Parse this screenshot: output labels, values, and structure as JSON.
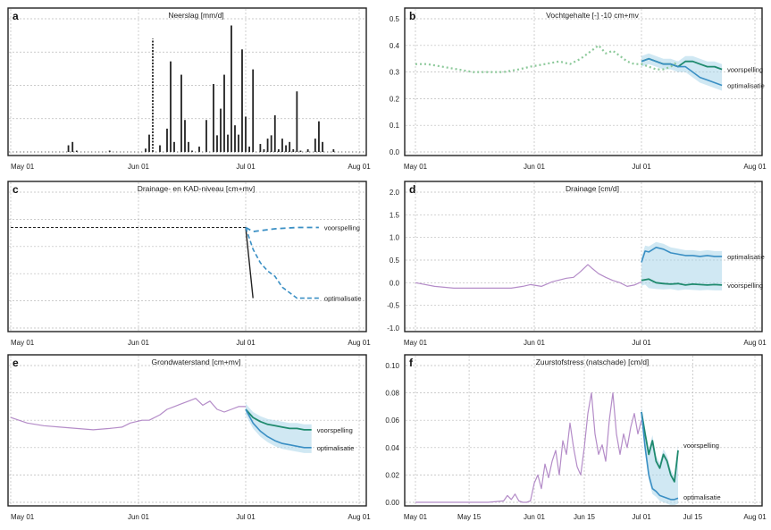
{
  "x_ticks": [
    "May 01",
    "Jun 01",
    "Jul 01",
    "Aug 01"
  ],
  "colors": {
    "observed": "#222222",
    "forecast": "#1f8a6e",
    "optimalisatie": "#3a8fc4",
    "band": "#a9d6ea",
    "history": "#b48cc8",
    "points": "#8cc99a"
  },
  "chart_data": [
    {
      "panel": "a",
      "type": "bar",
      "title": "Neerslag [mm/d]",
      "x_range": [
        1,
        93
      ],
      "ylim": [
        0,
        20
      ],
      "x": [
        15,
        16,
        17,
        25,
        34,
        35,
        36,
        38,
        40,
        41,
        42,
        44,
        45,
        46,
        47,
        49,
        51,
        53,
        54,
        55,
        56,
        57,
        58,
        59,
        60,
        61,
        62,
        63,
        64,
        66,
        67,
        68,
        69,
        70,
        71,
        72,
        73,
        74,
        75,
        76,
        77,
        79,
        81,
        82,
        83,
        86
      ],
      "values": [
        1.0,
        1.5,
        0.2,
        0.2,
        0.5,
        2.6,
        17.0,
        1.0,
        3.5,
        13.6,
        1.5,
        11.6,
        4.8,
        1.5,
        0.2,
        0.8,
        4.8,
        10.2,
        2.5,
        6.5,
        11.6,
        2.6,
        19.0,
        4.0,
        2.6,
        15.4,
        5.3,
        0.8,
        12.4,
        1.2,
        0.4,
        2.0,
        2.5,
        5.5,
        0.4,
        2.0,
        1.0,
        1.5,
        0.4,
        9.1,
        0.2,
        0.4,
        2.0,
        4.6,
        1.5,
        0.4
      ],
      "marks": [
        6
      ]
    },
    {
      "panel": "b",
      "type": "line",
      "title": "Vochtgehalte [-] -10 cm+mv",
      "x_range": [
        1,
        93
      ],
      "ylim": [
        0,
        0.5
      ],
      "yticks": [
        "0.0",
        "0.1",
        "0.2",
        "0.3",
        "0.4",
        "0.5"
      ],
      "ytick_values": [
        0,
        0.1,
        0.2,
        0.3,
        0.4,
        0.5
      ],
      "series": [
        {
          "x": [
            1,
            4,
            8,
            12,
            16,
            20,
            24,
            28,
            31,
            35,
            39,
            42,
            45,
            48,
            50,
            52,
            54,
            56,
            58,
            60,
            62,
            64,
            66,
            68,
            70,
            72
          ],
          "values": [
            0.33,
            0.33,
            0.32,
            0.31,
            0.3,
            0.3,
            0.3,
            0.31,
            0.32,
            0.33,
            0.34,
            0.33,
            0.35,
            0.38,
            0.4,
            0.37,
            0.38,
            0.36,
            0.34,
            0.33,
            0.33,
            0.32,
            0.31,
            0.31,
            0.32,
            0.34
          ]
        },
        {
          "name": "voorspelling",
          "x": [
            62,
            64,
            66,
            68,
            70,
            72,
            74,
            76,
            78,
            80,
            82,
            84
          ],
          "values": [
            0.34,
            0.35,
            0.34,
            0.33,
            0.33,
            0.32,
            0.34,
            0.34,
            0.33,
            0.32,
            0.32,
            0.31
          ]
        },
        {
          "name": "optimalisatie",
          "x": [
            62,
            64,
            66,
            68,
            70,
            72,
            74,
            76,
            78,
            80,
            82,
            84
          ],
          "values": [
            0.34,
            0.35,
            0.34,
            0.33,
            0.33,
            0.32,
            0.32,
            0.3,
            0.28,
            0.27,
            0.26,
            0.25
          ]
        }
      ],
      "labels": [
        "voorspelling",
        "optimalisatie"
      ]
    },
    {
      "panel": "c",
      "type": "line",
      "title": "Drainage- en KAD-niveau [cm+mv]",
      "x_range": [
        1,
        93
      ],
      "ylim": [
        0,
        1
      ],
      "series": [
        {
          "x": [
            1,
            62
          ],
          "values": [
            0.74,
            0.74
          ]
        },
        {
          "x": [
            62,
            64
          ],
          "values": [
            0.74,
            0.22
          ]
        },
        {
          "name": "voorspelling",
          "x": [
            62,
            64,
            70,
            76,
            82
          ],
          "values": [
            0.74,
            0.71,
            0.73,
            0.74,
            0.74
          ]
        },
        {
          "name": "optimalisatie",
          "x": [
            62,
            64,
            66,
            68,
            70,
            72,
            76,
            82
          ],
          "values": [
            0.74,
            0.58,
            0.48,
            0.42,
            0.38,
            0.3,
            0.22,
            0.22
          ]
        }
      ],
      "labels": [
        "voorspelling",
        "optimalisatie"
      ]
    },
    {
      "panel": "d",
      "type": "line",
      "title": "Drainage [cm/d]",
      "x_range": [
        1,
        93
      ],
      "ylim": [
        -1,
        2
      ],
      "yticks": [
        "-1.0",
        "-0.5",
        "0.0",
        "0.5",
        "1.0",
        "1.5",
        "2.0"
      ],
      "ytick_values": [
        -1,
        -0.5,
        0,
        0.5,
        1,
        1.5,
        2
      ],
      "series": [
        {
          "x": [
            1,
            6,
            11,
            16,
            21,
            26,
            29,
            31,
            34,
            37,
            39,
            41,
            43,
            45,
            47,
            48,
            50,
            52,
            54,
            56,
            58,
            60,
            62
          ],
          "values": [
            0.0,
            -0.08,
            -0.12,
            -0.12,
            -0.12,
            -0.12,
            -0.08,
            -0.04,
            -0.08,
            0.02,
            0.06,
            0.1,
            0.12,
            0.25,
            0.4,
            0.33,
            0.2,
            0.12,
            0.05,
            0.0,
            -0.08,
            -0.05,
            0.02
          ]
        },
        {
          "name": "voorspelling",
          "x": [
            62,
            64,
            66,
            68,
            70,
            72,
            74,
            76,
            78,
            80,
            82,
            84
          ],
          "values": [
            0.05,
            0.08,
            0.0,
            -0.02,
            -0.03,
            -0.02,
            -0.05,
            -0.03,
            -0.04,
            -0.05,
            -0.04,
            -0.05
          ]
        },
        {
          "name": "optimalisatie",
          "x": [
            62,
            63,
            64,
            66,
            68,
            70,
            72,
            74,
            76,
            78,
            80,
            82,
            84
          ],
          "values": [
            0.45,
            0.7,
            0.68,
            0.78,
            0.74,
            0.66,
            0.63,
            0.6,
            0.6,
            0.58,
            0.6,
            0.58,
            0.58
          ]
        }
      ],
      "labels": [
        "optimalisatie",
        "voorspelling"
      ]
    },
    {
      "panel": "e",
      "type": "line",
      "title": "Grondwaterstand [cm+mv]",
      "x_range": [
        1,
        93
      ],
      "ylim": [
        0,
        1
      ],
      "series": [
        {
          "x": [
            1,
            5,
            9,
            13,
            17,
            21,
            25,
            28,
            30,
            33,
            35,
            38,
            40,
            42,
            44,
            46,
            48,
            50,
            52,
            54,
            56,
            58,
            60,
            62
          ],
          "values": [
            0.62,
            0.58,
            0.56,
            0.55,
            0.54,
            0.53,
            0.54,
            0.55,
            0.58,
            0.6,
            0.6,
            0.64,
            0.68,
            0.7,
            0.72,
            0.74,
            0.76,
            0.71,
            0.74,
            0.68,
            0.66,
            0.68,
            0.7,
            0.7
          ]
        },
        {
          "name": "voorspelling",
          "x": [
            62,
            64,
            66,
            68,
            70,
            72,
            74,
            76,
            78,
            80
          ],
          "values": [
            0.68,
            0.62,
            0.59,
            0.57,
            0.56,
            0.55,
            0.54,
            0.54,
            0.53,
            0.53
          ]
        },
        {
          "name": "optimalisatie",
          "x": [
            62,
            64,
            66,
            68,
            70,
            72,
            74,
            76,
            78,
            80
          ],
          "values": [
            0.68,
            0.58,
            0.52,
            0.48,
            0.45,
            0.43,
            0.42,
            0.41,
            0.4,
            0.4
          ]
        }
      ],
      "labels": [
        "voorspelling",
        "optimalisatie"
      ]
    },
    {
      "panel": "f",
      "type": "line",
      "title": "Zuurstofstress (natschade) [cm/d]",
      "x_range": [
        1,
        93
      ],
      "ylim": [
        0,
        0.1
      ],
      "xticks": [
        "May 01",
        "May 15",
        "Jun 01",
        "Jun 15",
        "Jul 01",
        "Jul 15",
        "Aug 01"
      ],
      "xtick_values": [
        1,
        15,
        32,
        46,
        62,
        76,
        93
      ],
      "yticks": [
        "0.00",
        "0.02",
        "0.04",
        "0.06",
        "0.08",
        "0.10"
      ],
      "ytick_values": [
        0,
        0.02,
        0.04,
        0.06,
        0.08,
        0.1
      ],
      "series": [
        {
          "x": [
            1,
            10,
            20,
            24,
            25,
            26,
            27,
            28,
            29,
            30,
            31,
            32,
            33,
            34,
            35,
            36,
            37,
            38,
            39,
            40,
            41,
            42,
            43,
            44,
            45,
            46,
            47,
            48,
            49,
            50,
            51,
            52,
            53,
            54,
            55,
            56,
            57,
            58,
            59,
            60,
            61,
            62
          ],
          "values": [
            0.0,
            0.0,
            0.0,
            0.001,
            0.005,
            0.002,
            0.006,
            0.001,
            0.0,
            0.0,
            0.001,
            0.014,
            0.02,
            0.01,
            0.028,
            0.018,
            0.03,
            0.038,
            0.02,
            0.045,
            0.035,
            0.058,
            0.04,
            0.026,
            0.02,
            0.04,
            0.065,
            0.08,
            0.05,
            0.035,
            0.042,
            0.03,
            0.06,
            0.08,
            0.05,
            0.035,
            0.05,
            0.04,
            0.055,
            0.065,
            0.05,
            0.06
          ]
        },
        {
          "name": "voorspelling",
          "x": [
            62,
            63,
            64,
            65,
            66,
            67,
            68,
            69,
            70,
            71,
            72
          ],
          "values": [
            0.066,
            0.05,
            0.035,
            0.045,
            0.03,
            0.025,
            0.035,
            0.03,
            0.02,
            0.015,
            0.038
          ]
        },
        {
          "name": "optimalisatie",
          "x": [
            62,
            63,
            64,
            65,
            66,
            67,
            68,
            69,
            70,
            71,
            72
          ],
          "values": [
            0.066,
            0.04,
            0.02,
            0.01,
            0.008,
            0.005,
            0.004,
            0.003,
            0.002,
            0.002,
            0.003
          ]
        }
      ],
      "labels": [
        "voorspelling",
        "optimalisatie"
      ]
    }
  ]
}
